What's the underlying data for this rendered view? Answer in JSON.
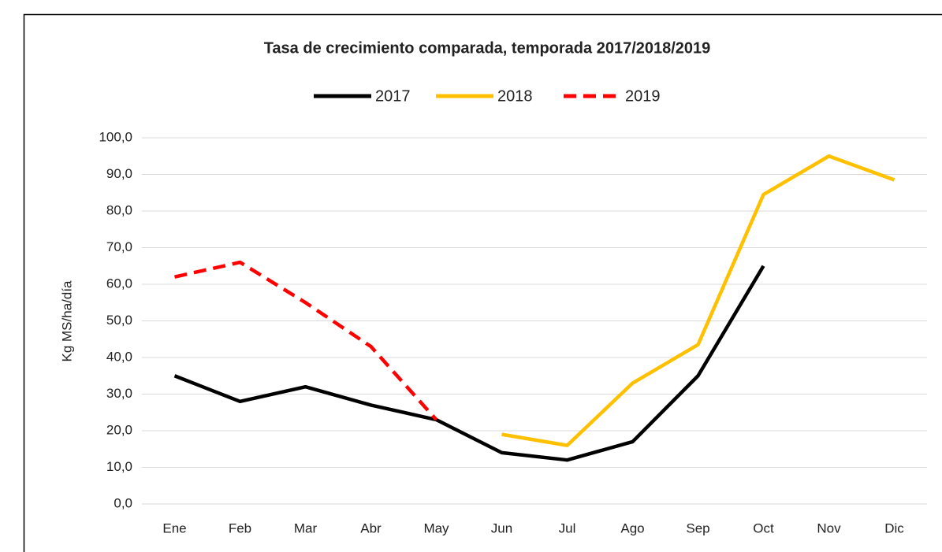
{
  "chart_data": {
    "type": "line",
    "title": "Tasa de crecimiento comparada, temporada 2017/2018/2019",
    "y_label": "Kg MS/ha/día",
    "categories": [
      "Ene",
      "Feb",
      "Mar",
      "Abr",
      "May",
      "Jun",
      "Jul",
      "Ago",
      "Sep",
      "Oct",
      "Nov",
      "Dic"
    ],
    "series": [
      {
        "name": "2017",
        "color": "#000000",
        "dash": false,
        "values": [
          35,
          28,
          32,
          27,
          23,
          14,
          12,
          17,
          35,
          65,
          null,
          null
        ]
      },
      {
        "name": "2018",
        "color": "#ffc000",
        "dash": false,
        "values": [
          null,
          null,
          null,
          null,
          null,
          19,
          16,
          33,
          43.5,
          84.5,
          95,
          88.5
        ]
      },
      {
        "name": "2019",
        "color": "#ff0000",
        "dash": true,
        "values": [
          62,
          66,
          55,
          43,
          23,
          null,
          null,
          null,
          null,
          null,
          null,
          null
        ]
      }
    ],
    "ylim": [
      0,
      100
    ],
    "yticks": [
      {
        "value": 0,
        "label": "0,0"
      },
      {
        "value": 10,
        "label": "10,0"
      },
      {
        "value": 20,
        "label": "20,0"
      },
      {
        "value": 30,
        "label": "30,0"
      },
      {
        "value": 40,
        "label": "40,0"
      },
      {
        "value": 50,
        "label": "50,0"
      },
      {
        "value": 60,
        "label": "60,0"
      },
      {
        "value": 70,
        "label": "70,0"
      },
      {
        "value": 80,
        "label": "80,0"
      },
      {
        "value": 90,
        "label": "90,0"
      },
      {
        "value": 100,
        "label": "100,0"
      }
    ],
    "grid": true,
    "legend": "top"
  }
}
